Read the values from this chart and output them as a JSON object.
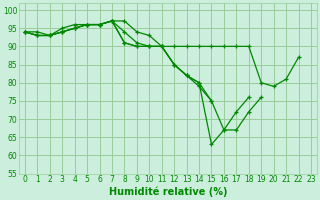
{
  "xlabel": "Humidité relative (%)",
  "background_color": "#cceedd",
  "grid_color": "#99cc99",
  "line_color": "#008800",
  "ylim": [
    55,
    102
  ],
  "xlim": [
    -0.5,
    23.5
  ],
  "yticks": [
    55,
    60,
    65,
    70,
    75,
    80,
    85,
    90,
    95,
    100
  ],
  "xticks": [
    0,
    1,
    2,
    3,
    4,
    5,
    6,
    7,
    8,
    9,
    10,
    11,
    12,
    13,
    14,
    15,
    16,
    17,
    18,
    19,
    20,
    21,
    22,
    23
  ],
  "series": [
    [
      94,
      94,
      93,
      95,
      96,
      96,
      96,
      97,
      97,
      94,
      93,
      90,
      85,
      82,
      79,
      75,
      null,
      null,
      null,
      null,
      null,
      null,
      null,
      null
    ],
    [
      94,
      93,
      93,
      94,
      95,
      96,
      96,
      97,
      94,
      91,
      90,
      90,
      90,
      90,
      90,
      90,
      90,
      90,
      90,
      80,
      79,
      81,
      87,
      null
    ],
    [
      94,
      93,
      93,
      94,
      95,
      96,
      96,
      97,
      91,
      90,
      90,
      90,
      85,
      82,
      80,
      75,
      67,
      67,
      72,
      76,
      null,
      null,
      null,
      null
    ],
    [
      94,
      93,
      93,
      94,
      95,
      96,
      96,
      97,
      91,
      90,
      90,
      90,
      85,
      82,
      80,
      63,
      67,
      72,
      76,
      null,
      null,
      null,
      null,
      null
    ]
  ],
  "xlabel_fontsize": 7,
  "tick_fontsize": 5.5
}
